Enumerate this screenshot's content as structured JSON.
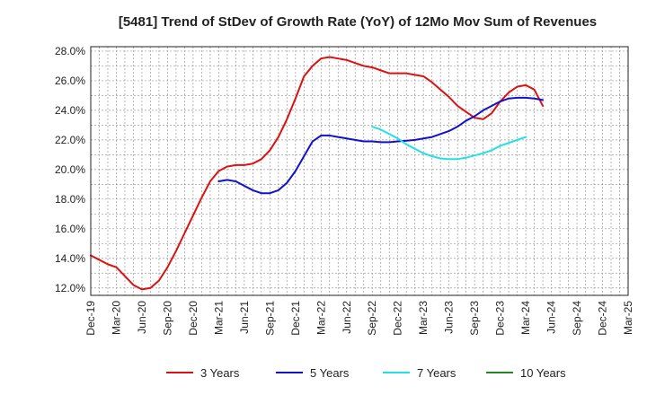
{
  "chart_data": {
    "type": "line",
    "title": "[5481]  Trend of StDev of Growth Rate (YoY) of 12Mo Mov Sum of Revenues",
    "xlabel": "",
    "ylabel": "",
    "ylim": [
      11.5,
      28.3
    ],
    "x_ticks": [
      "Dec-19",
      "Mar-20",
      "Jun-20",
      "Sep-20",
      "Dec-20",
      "Mar-21",
      "Jun-21",
      "Sep-21",
      "Dec-21",
      "Mar-22",
      "Jun-22",
      "Sep-22",
      "Dec-22",
      "Mar-23",
      "Jun-23",
      "Sep-23",
      "Dec-23",
      "Mar-24",
      "Jun-24",
      "Sep-24",
      "Dec-24",
      "Mar-25"
    ],
    "y_ticks": [
      12.0,
      14.0,
      16.0,
      18.0,
      20.0,
      22.0,
      24.0,
      26.0,
      28.0
    ],
    "y_tick_labels": [
      "12.0%",
      "14.0%",
      "16.0%",
      "18.0%",
      "20.0%",
      "22.0%",
      "24.0%",
      "26.0%",
      "28.0%"
    ],
    "grid": true,
    "legend_position": "bottom",
    "series": [
      {
        "name": "3 Years",
        "color": "#dd1111",
        "points": [
          [
            0,
            14.2
          ],
          [
            1,
            13.9
          ],
          [
            2,
            13.6
          ],
          [
            3,
            13.4
          ],
          [
            4,
            12.8
          ],
          [
            5,
            12.2
          ],
          [
            6,
            11.9
          ],
          [
            7,
            12.0
          ],
          [
            8,
            12.5
          ],
          [
            9,
            13.4
          ],
          [
            10,
            14.5
          ],
          [
            11,
            15.7
          ],
          [
            12,
            16.9
          ],
          [
            13,
            18.1
          ],
          [
            14,
            19.2
          ],
          [
            15,
            19.9
          ],
          [
            16,
            20.2
          ],
          [
            17,
            20.3
          ],
          [
            18,
            20.3
          ],
          [
            19,
            20.4
          ],
          [
            20,
            20.7
          ],
          [
            21,
            21.3
          ],
          [
            22,
            22.2
          ],
          [
            23,
            23.4
          ],
          [
            24,
            24.8
          ],
          [
            25,
            26.3
          ],
          [
            26,
            27.0
          ],
          [
            27,
            27.5
          ],
          [
            28,
            27.6
          ],
          [
            29,
            27.5
          ],
          [
            30,
            27.4
          ],
          [
            31,
            27.2
          ],
          [
            32,
            27.0
          ],
          [
            33,
            26.9
          ],
          [
            34,
            26.7
          ],
          [
            35,
            26.5
          ],
          [
            36,
            26.5
          ],
          [
            37,
            26.5
          ],
          [
            38,
            26.4
          ],
          [
            39,
            26.3
          ],
          [
            40,
            25.9
          ],
          [
            41,
            25.4
          ],
          [
            42,
            24.9
          ],
          [
            43,
            24.3
          ],
          [
            44,
            23.9
          ],
          [
            45,
            23.5
          ],
          [
            46,
            23.4
          ],
          [
            47,
            23.8
          ],
          [
            48,
            24.6
          ],
          [
            49,
            25.2
          ],
          [
            50,
            25.6
          ],
          [
            51,
            25.7
          ],
          [
            52,
            25.4
          ],
          [
            53,
            24.3
          ]
        ]
      },
      {
        "name": "5 Years",
        "color": "#1111cc",
        "points": [
          [
            15,
            19.2
          ],
          [
            16,
            19.3
          ],
          [
            17,
            19.2
          ],
          [
            18,
            18.9
          ],
          [
            19,
            18.6
          ],
          [
            20,
            18.4
          ],
          [
            21,
            18.4
          ],
          [
            22,
            18.6
          ],
          [
            23,
            19.1
          ],
          [
            24,
            19.9
          ],
          [
            25,
            20.9
          ],
          [
            26,
            21.9
          ],
          [
            27,
            22.3
          ],
          [
            28,
            22.3
          ],
          [
            29,
            22.2
          ],
          [
            30,
            22.1
          ],
          [
            31,
            22.0
          ],
          [
            32,
            21.9
          ],
          [
            33,
            21.9
          ],
          [
            34,
            21.85
          ],
          [
            35,
            21.85
          ],
          [
            36,
            21.9
          ],
          [
            37,
            21.95
          ],
          [
            38,
            22.0
          ],
          [
            39,
            22.1
          ],
          [
            40,
            22.2
          ],
          [
            41,
            22.4
          ],
          [
            42,
            22.6
          ],
          [
            43,
            22.9
          ],
          [
            44,
            23.3
          ],
          [
            45,
            23.6
          ],
          [
            46,
            24.0
          ],
          [
            47,
            24.3
          ],
          [
            48,
            24.6
          ],
          [
            49,
            24.8
          ],
          [
            50,
            24.85
          ],
          [
            51,
            24.85
          ],
          [
            52,
            24.8
          ],
          [
            53,
            24.7
          ]
        ]
      },
      {
        "name": "7 Years",
        "color": "#22e0e6",
        "points": [
          [
            33,
            22.9
          ],
          [
            34,
            22.7
          ],
          [
            35,
            22.4
          ],
          [
            36,
            22.1
          ],
          [
            37,
            21.7
          ],
          [
            38,
            21.4
          ],
          [
            39,
            21.1
          ],
          [
            40,
            20.9
          ],
          [
            41,
            20.75
          ],
          [
            42,
            20.7
          ],
          [
            43,
            20.7
          ],
          [
            44,
            20.8
          ],
          [
            45,
            20.95
          ],
          [
            46,
            21.1
          ],
          [
            47,
            21.3
          ],
          [
            48,
            21.6
          ],
          [
            49,
            21.8
          ],
          [
            50,
            22.0
          ],
          [
            51,
            22.2
          ]
        ]
      },
      {
        "name": "10 Years",
        "color": "#228822",
        "points": []
      }
    ]
  }
}
